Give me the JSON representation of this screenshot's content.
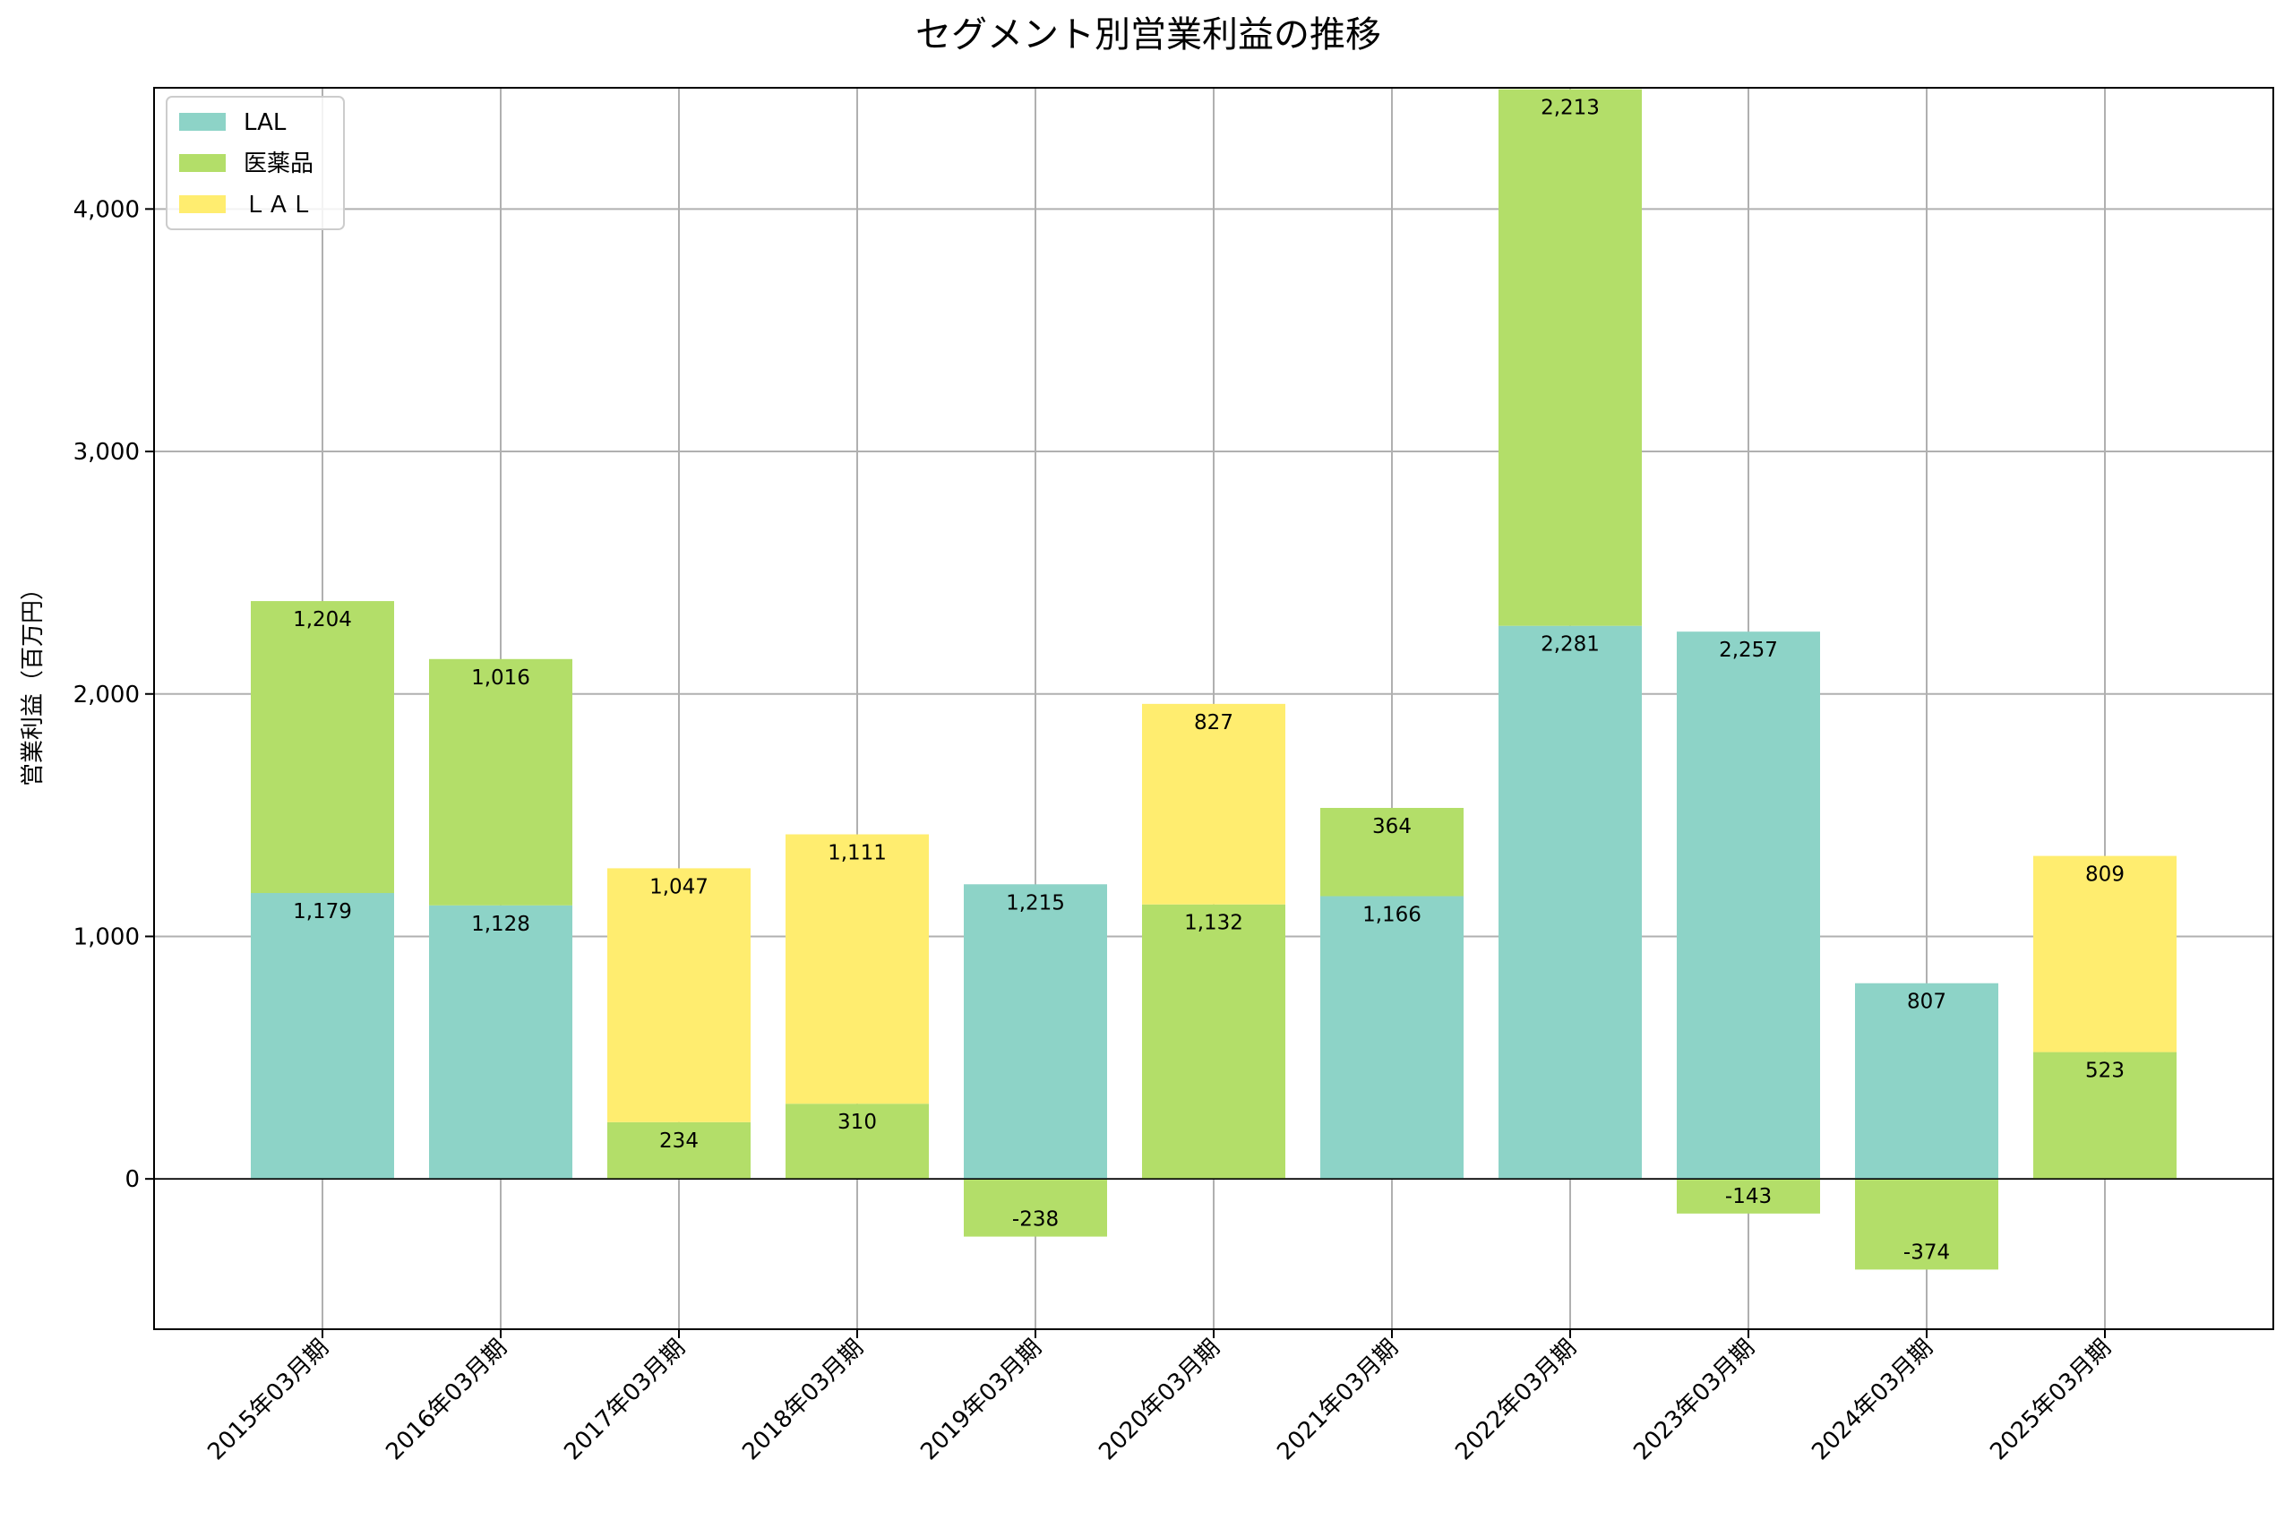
{
  "chart_data": {
    "type": "bar",
    "stacked": true,
    "title": "セグメント別営業利益の推移",
    "xlabel": "",
    "ylabel": "営業利益（百万円）",
    "ylim": [
      -620,
      4500
    ],
    "yticks": [
      0,
      1000,
      2000,
      3000,
      4000
    ],
    "ytick_labels": [
      "0",
      "1,000",
      "2,000",
      "3,000",
      "4,000"
    ],
    "grid": true,
    "legend_position": "top-left",
    "categories": [
      "2015年03月期",
      "2016年03月期",
      "2017年03月期",
      "2018年03月期",
      "2019年03月期",
      "2020年03月期",
      "2021年03月期",
      "2022年03月期",
      "2023年03月期",
      "2024年03月期",
      "2025年03月期"
    ],
    "series": [
      {
        "name": "LAL",
        "color": "#8dd3c7",
        "values": [
          1179,
          1128,
          null,
          null,
          1215,
          null,
          1166,
          2281,
          2257,
          807,
          null
        ]
      },
      {
        "name": "医薬品",
        "color": "#b3de69",
        "values": [
          1204,
          1016,
          234,
          310,
          -238,
          1132,
          364,
          2213,
          -143,
          -374,
          523
        ]
      },
      {
        "name": "ＬＡＬ",
        "color": "#ffed6f",
        "values": [
          null,
          null,
          1047,
          1111,
          null,
          827,
          null,
          null,
          null,
          null,
          809
        ]
      }
    ],
    "data_labels": [
      [
        "1,179",
        "1,128",
        null,
        null,
        "1,215",
        null,
        "1,166",
        "2,281",
        "2,257",
        "807",
        null
      ],
      [
        "1,204",
        "1,016",
        "234",
        "310",
        "-238",
        "1,132",
        "364",
        "2,213",
        "-143",
        "-374",
        "523"
      ],
      [
        null,
        null,
        "1,047",
        "1,111",
        null,
        "827",
        null,
        null,
        null,
        null,
        "809"
      ]
    ]
  }
}
